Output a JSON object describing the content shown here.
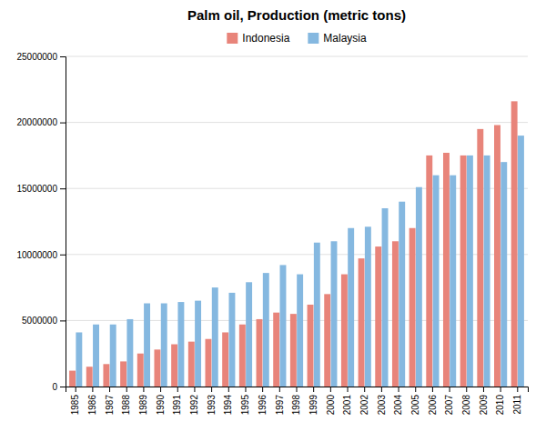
{
  "chart_data": {
    "type": "bar",
    "title": "Palm oil, Production (metric tons)",
    "categories": [
      "1985",
      "1986",
      "1987",
      "1988",
      "1989",
      "1990",
      "1991",
      "1992",
      "1993",
      "1994",
      "1995",
      "1996",
      "1997",
      "1998",
      "1999",
      "2000",
      "2001",
      "2002",
      "2003",
      "2004",
      "2005",
      "2006",
      "2007",
      "2008",
      "2009",
      "2010",
      "2011"
    ],
    "series": [
      {
        "name": "Indonesia",
        "color": "#E8847A",
        "values": [
          1200000,
          1500000,
          1700000,
          1900000,
          2500000,
          2800000,
          3200000,
          3400000,
          3600000,
          4100000,
          4700000,
          5100000,
          5600000,
          5500000,
          6200000,
          7000000,
          8500000,
          9700000,
          10600000,
          11000000,
          12000000,
          17500000,
          17700000,
          17500000,
          19500000,
          19800000,
          21600000
        ]
      },
      {
        "name": "Malaysia",
        "color": "#85B8E0",
        "values": [
          4100000,
          4700000,
          4700000,
          5100000,
          6300000,
          6300000,
          6400000,
          6500000,
          7500000,
          7100000,
          7900000,
          8600000,
          9200000,
          8500000,
          10900000,
          11000000,
          12000000,
          12100000,
          13500000,
          14000000,
          15100000,
          16000000,
          16000000,
          17500000,
          17500000,
          17000000,
          19000000
        ]
      }
    ],
    "ylim": [
      0,
      25000000
    ],
    "yticks": [
      0,
      5000000,
      10000000,
      15000000,
      20000000,
      25000000
    ],
    "grid": true,
    "legend": "top"
  }
}
